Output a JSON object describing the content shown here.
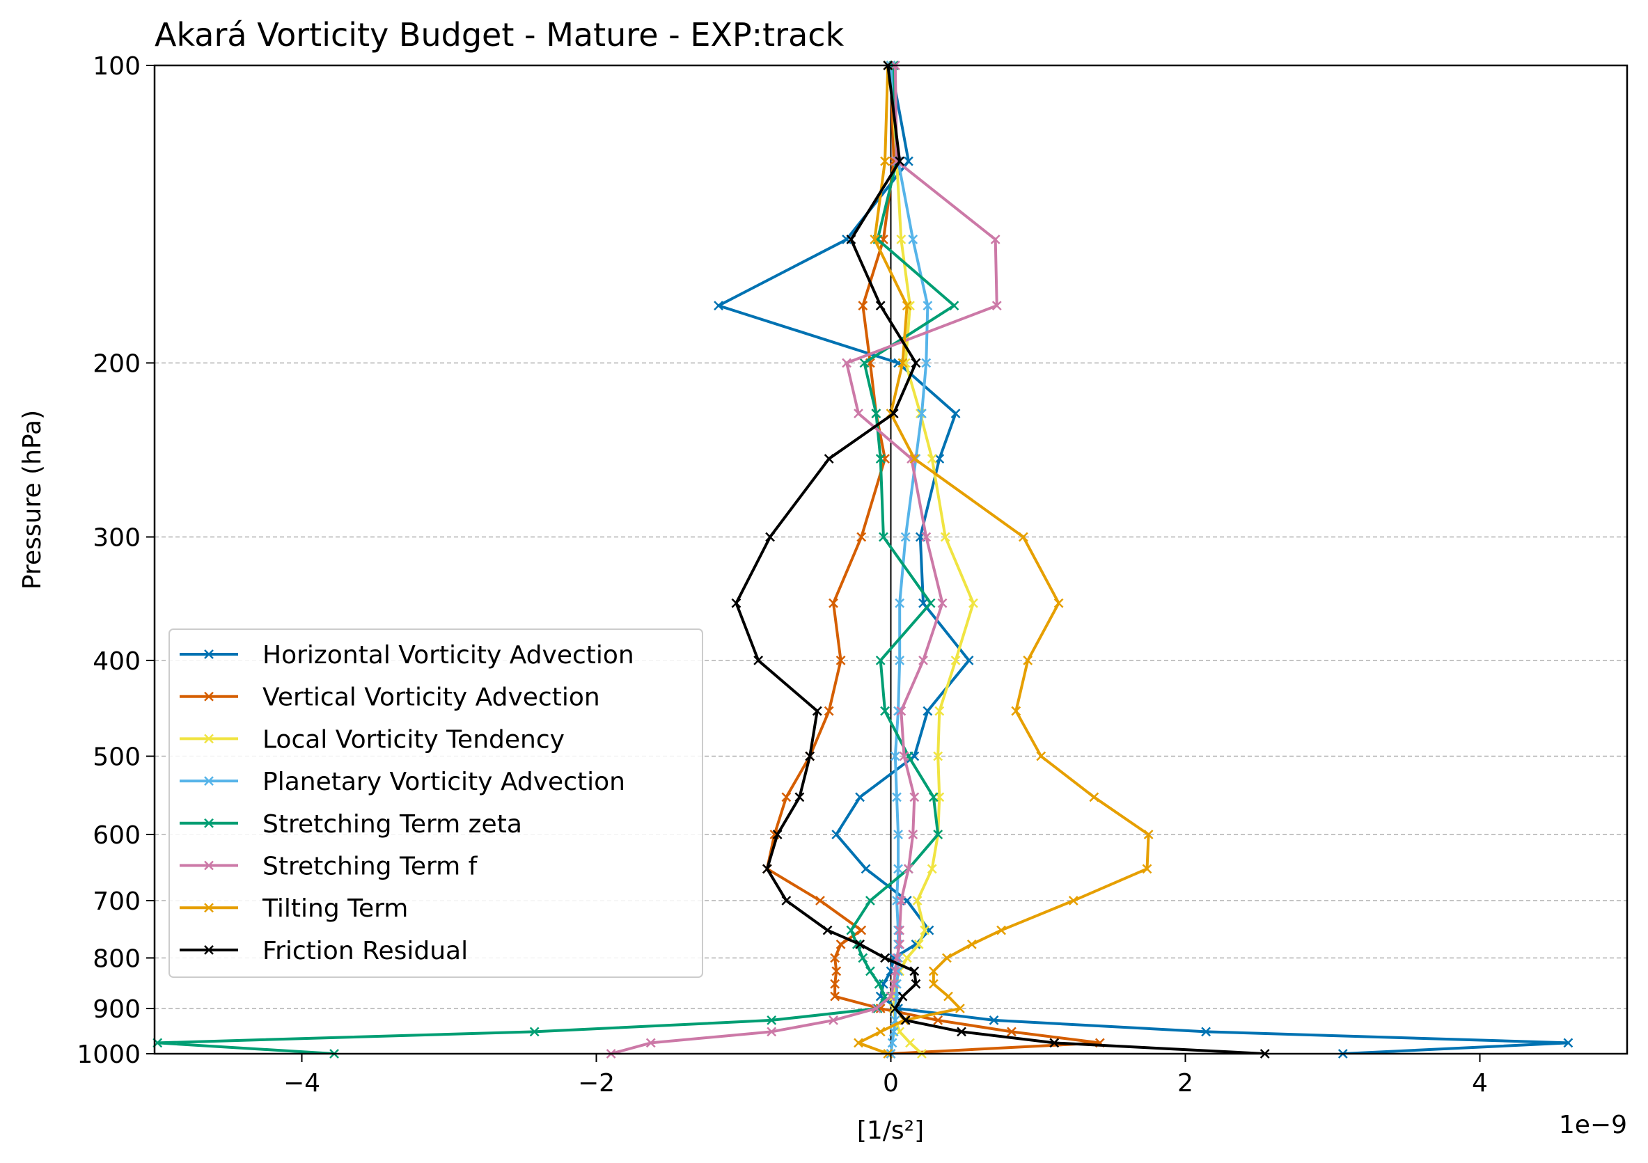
{
  "chart_data": {
    "type": "line",
    "title": "Akará Vorticity Budget - Mature - EXP:track",
    "xlabel": "[1/s²]",
    "ylabel": "Pressure (hPa)",
    "x_offset_label": "1e−9",
    "xlim": [
      -5e-09,
      5e-09
    ],
    "ylim": [
      1000,
      100
    ],
    "yscale": "log",
    "x_ticks": [
      -4e-09,
      -2e-09,
      0,
      2e-09,
      4e-09
    ],
    "x_tick_labels": [
      "−4",
      "−2",
      "0",
      "2",
      "4"
    ],
    "y_ticks": [
      100,
      200,
      300,
      400,
      500,
      600,
      700,
      800,
      900,
      1000
    ],
    "y_tick_labels": [
      "100",
      "200",
      "300",
      "400",
      "500",
      "600",
      "700",
      "800",
      "900",
      "1000"
    ],
    "grid": "horizontal dashed",
    "legend_position": "lower-left",
    "levels": [
      1000,
      975,
      950,
      925,
      900,
      875,
      850,
      825,
      800,
      775,
      750,
      700,
      650,
      600,
      550,
      500,
      450,
      400,
      350,
      300,
      250,
      225,
      200,
      175,
      150,
      125,
      100
    ],
    "series": [
      {
        "name": "Horizontal Vorticity Advection",
        "color": "#0072b2",
        "values": [
          3.07e-09,
          4.6e-09,
          2.14e-09,
          7e-10,
          5e-11,
          -7e-11,
          -5e-11,
          0.0,
          2e-11,
          1.7e-10,
          2.6e-10,
          1.1e-10,
          -1.7e-10,
          -3.7e-10,
          -2.1e-10,
          1.6e-10,
          2.5e-10,
          5.3e-10,
          2.2e-10,
          2e-10,
          3.3e-10,
          4.4e-10,
          5e-11,
          -1.17e-09,
          -3e-10,
          1.2e-10,
          0.0
        ]
      },
      {
        "name": "Vertical Vorticity Advection",
        "color": "#d55e00",
        "values": [
          0.0,
          1.42e-09,
          8.2e-10,
          3.2e-10,
          -7e-11,
          -3.8e-10,
          -3.8e-10,
          -3.7e-10,
          -3.8e-10,
          -3.4e-10,
          -2e-10,
          -4.8e-10,
          -8.4e-10,
          -7.9e-10,
          -7.1e-10,
          -5.5e-10,
          -4.2e-10,
          -3.4e-10,
          -3.9e-10,
          -2e-10,
          -4e-11,
          -1e-10,
          -1.4e-10,
          -1.9e-10,
          -5e-11,
          2e-11,
          0.0
        ]
      },
      {
        "name": "Local Vorticity Tendency",
        "color": "#f0e442",
        "values": [
          2.1e-10,
          1.3e-10,
          6e-11,
          3e-11,
          2e-11,
          2e-11,
          3e-11,
          6e-11,
          1.1e-10,
          1.9e-10,
          2.3e-10,
          1.8e-10,
          2.8e-10,
          3.2e-10,
          3.3e-10,
          3.2e-10,
          3.3e-10,
          4.4e-10,
          5.6e-10,
          3.7e-10,
          2.8e-10,
          2e-10,
          1e-10,
          1.3e-10,
          7e-11,
          4e-11,
          0.0
        ]
      },
      {
        "name": "Planetary Vorticity Advection",
        "color": "#56b4e9",
        "values": [
          0.0,
          1e-11,
          2e-11,
          3e-11,
          3e-11,
          4e-11,
          4e-11,
          5e-11,
          5e-11,
          5e-11,
          5e-11,
          4e-11,
          5e-11,
          5e-11,
          4e-11,
          3e-11,
          5e-11,
          6e-11,
          6e-11,
          1e-10,
          1.7e-10,
          2.1e-10,
          2.4e-10,
          2.5e-10,
          1.5e-10,
          5e-11,
          0.0
        ]
      },
      {
        "name": "Stretching Term zeta",
        "color": "#009e73",
        "values": [
          -3.78e-09,
          -4.98e-09,
          -2.42e-09,
          -8.1e-10,
          -9e-11,
          -4e-11,
          -8e-11,
          -1.4e-10,
          -1.9e-10,
          -2.3e-10,
          -2.7e-10,
          -1.4e-10,
          1.2e-10,
          3.2e-10,
          2.9e-10,
          1.2e-10,
          -4e-11,
          -7e-11,
          2.7e-10,
          -5e-11,
          -7e-11,
          -1e-10,
          -1.8e-10,
          4.3e-10,
          -9e-11,
          4e-11,
          2e-11
        ]
      },
      {
        "name": "Stretching Term f",
        "color": "#cc79a7",
        "values": [
          -1.9e-09,
          -1.63e-09,
          -8.1e-10,
          -3.9e-10,
          -1e-10,
          0.0,
          2e-11,
          3e-11,
          4e-11,
          6e-11,
          6e-11,
          7e-11,
          1.2e-10,
          1.5e-10,
          1.6e-10,
          9e-11,
          7e-11,
          2.2e-10,
          3.5e-10,
          2.4e-10,
          1.4e-10,
          -2.2e-10,
          -3e-10,
          7.2e-10,
          7.1e-10,
          4e-11,
          3e-11
        ]
      },
      {
        "name": "Tilting Term",
        "color": "#e69f00",
        "values": [
          -2e-11,
          -2.2e-10,
          -7e-11,
          9e-11,
          4.7e-10,
          3.9e-10,
          2.9e-10,
          2.9e-10,
          3.8e-10,
          5.5e-10,
          7.5e-10,
          1.24e-09,
          1.74e-09,
          1.75e-09,
          1.38e-09,
          1.02e-09,
          8.5e-10,
          9.3e-10,
          1.14e-09,
          9e-10,
          1.6e-10,
          0.0,
          8e-11,
          1.1e-10,
          -1.1e-10,
          -4e-11,
          -2e-11
        ]
      },
      {
        "name": "Friction Residual",
        "color": "#000000",
        "values": [
          2.54e-09,
          1.11e-09,
          4.8e-10,
          1e-10,
          3e-11,
          8e-11,
          1.7e-10,
          1.6e-10,
          -4e-11,
          -2.1e-10,
          -4.3e-10,
          -7.1e-10,
          -8.4e-10,
          -7.7e-10,
          -6.2e-10,
          -5.5e-10,
          -5e-10,
          -9e-10,
          -1.05e-09,
          -8.2e-10,
          -4.2e-10,
          2e-11,
          1.7e-10,
          -7e-11,
          -2.7e-10,
          6e-11,
          -2e-11
        ]
      }
    ]
  }
}
